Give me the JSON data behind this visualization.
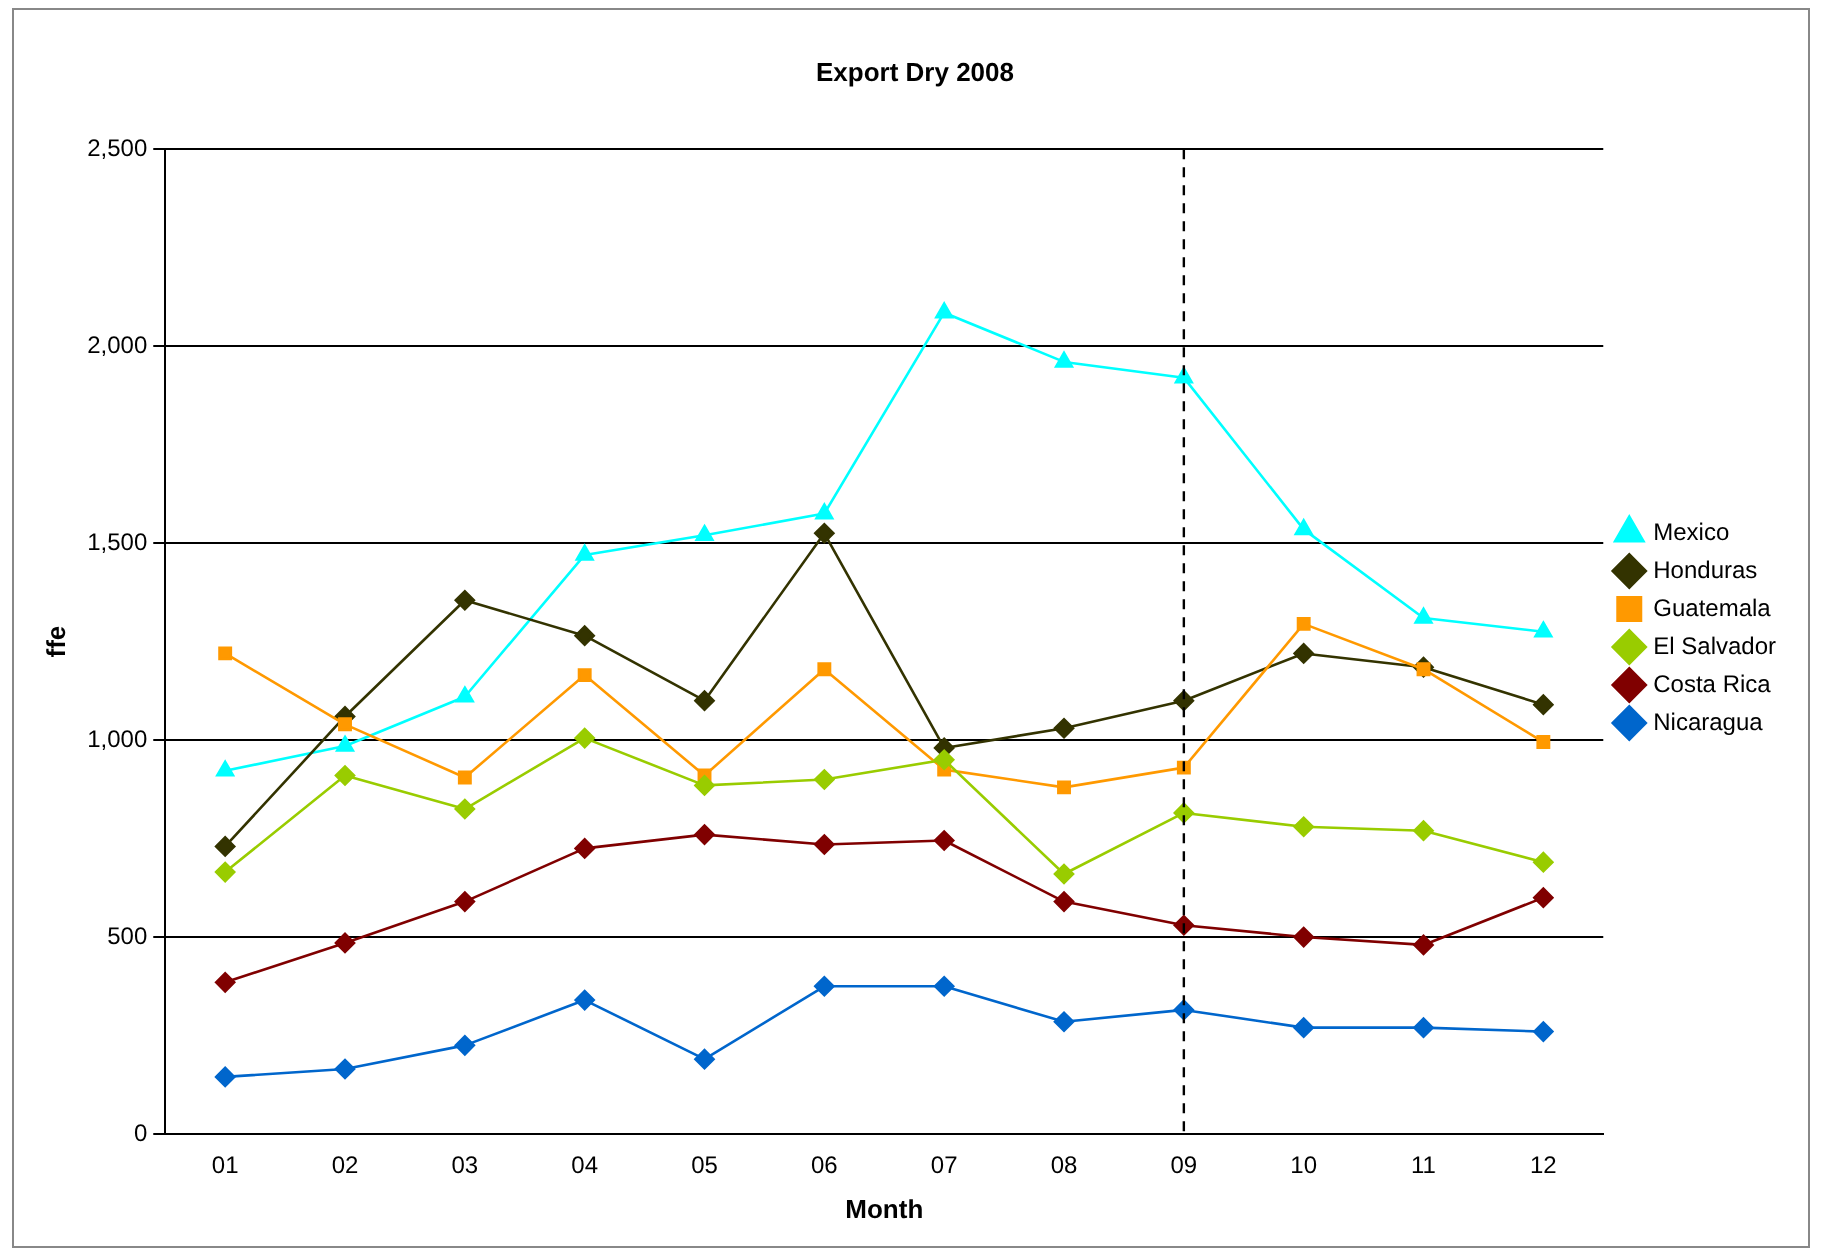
{
  "chart_data": {
    "type": "line",
    "title": "Export Dry 2008",
    "xlabel": "Month",
    "ylabel": "ffe",
    "categories": [
      "01",
      "02",
      "03",
      "04",
      "05",
      "06",
      "07",
      "08",
      "09",
      "10",
      "11",
      "12"
    ],
    "series": [
      {
        "name": "Mexico",
        "color": "#00ffff",
        "marker": "triangle",
        "values": [
          922,
          985,
          1110,
          1470,
          1520,
          1575,
          2085,
          1960,
          1920,
          1535,
          1310,
          1275
        ]
      },
      {
        "name": "Honduras",
        "color": "#333300",
        "marker": "diamond",
        "values": [
          730,
          1060,
          1355,
          1265,
          1100,
          1525,
          980,
          1030,
          1100,
          1220,
          1185,
          1090
        ]
      },
      {
        "name": "Guatemala",
        "color": "#ff9900",
        "marker": "square",
        "values": [
          1220,
          1040,
          905,
          1165,
          910,
          1180,
          925,
          880,
          930,
          1295,
          1180,
          995
        ]
      },
      {
        "name": "El Salvador",
        "color": "#99cc00",
        "marker": "diamond",
        "values": [
          665,
          910,
          825,
          1005,
          885,
          900,
          950,
          660,
          815,
          780,
          770,
          690
        ]
      },
      {
        "name": "Costa Rica",
        "color": "#800000",
        "marker": "diamond",
        "values": [
          385,
          485,
          590,
          725,
          760,
          735,
          745,
          590,
          530,
          500,
          480,
          600
        ]
      },
      {
        "name": "Nicaragua",
        "color": "#0066cc",
        "marker": "diamond",
        "values": [
          145,
          165,
          225,
          340,
          190,
          375,
          375,
          285,
          315,
          270,
          270,
          260
        ]
      }
    ],
    "ylim": [
      0,
      2500
    ],
    "yticks": [
      {
        "value": 0,
        "label": "0"
      },
      {
        "value": 500,
        "label": "500"
      },
      {
        "value": 1000,
        "label": "1,000"
      },
      {
        "value": 1500,
        "label": "1,500"
      },
      {
        "value": 2000,
        "label": "2,000"
      },
      {
        "value": 2500,
        "label": "2,500"
      }
    ],
    "grid": "y",
    "legend": "right",
    "line_style": "solid",
    "ref_lines": [
      {
        "axis": "x",
        "value": "09",
        "color": "#000000",
        "line_style": "dashed"
      }
    ]
  }
}
